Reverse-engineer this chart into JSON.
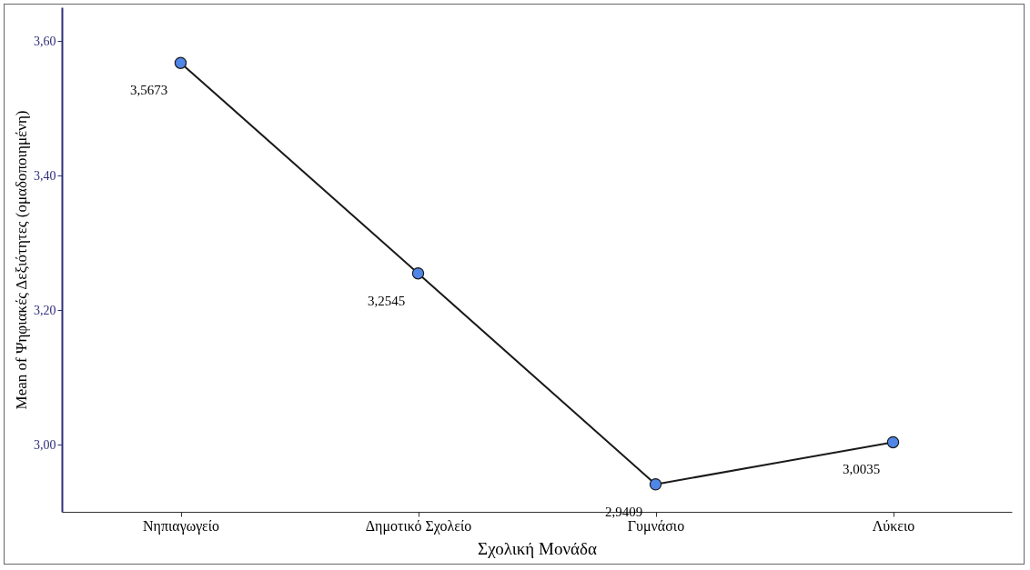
{
  "chart_data": {
    "type": "line",
    "xlabel": "Σχολική Μονάδα",
    "ylabel": "Mean of Ψηφιακές Δεξιότητες (ομαδοποιημένη)",
    "categories": [
      "Νηπιαγωγείο",
      "Δημοτικό Σχολείο",
      "Γυμνάσιο",
      "Λύκειο"
    ],
    "series": [
      {
        "color": "#4f86e8",
        "values": [
          3.5673,
          3.2545,
          2.9409,
          3.0035
        ]
      }
    ],
    "value_labels": [
      "3,5673",
      "3,2545",
      "2,9409",
      "3,0035"
    ],
    "ylim": [
      2.9,
      3.65
    ],
    "yticks": [
      {
        "value": 3.0,
        "label": "3,00"
      },
      {
        "value": 3.2,
        "label": "3,20"
      },
      {
        "value": 3.4,
        "label": "3,40"
      },
      {
        "value": 3.6,
        "label": "3,60"
      }
    ],
    "grid": false,
    "marker": "circle",
    "line_style": "solid"
  }
}
